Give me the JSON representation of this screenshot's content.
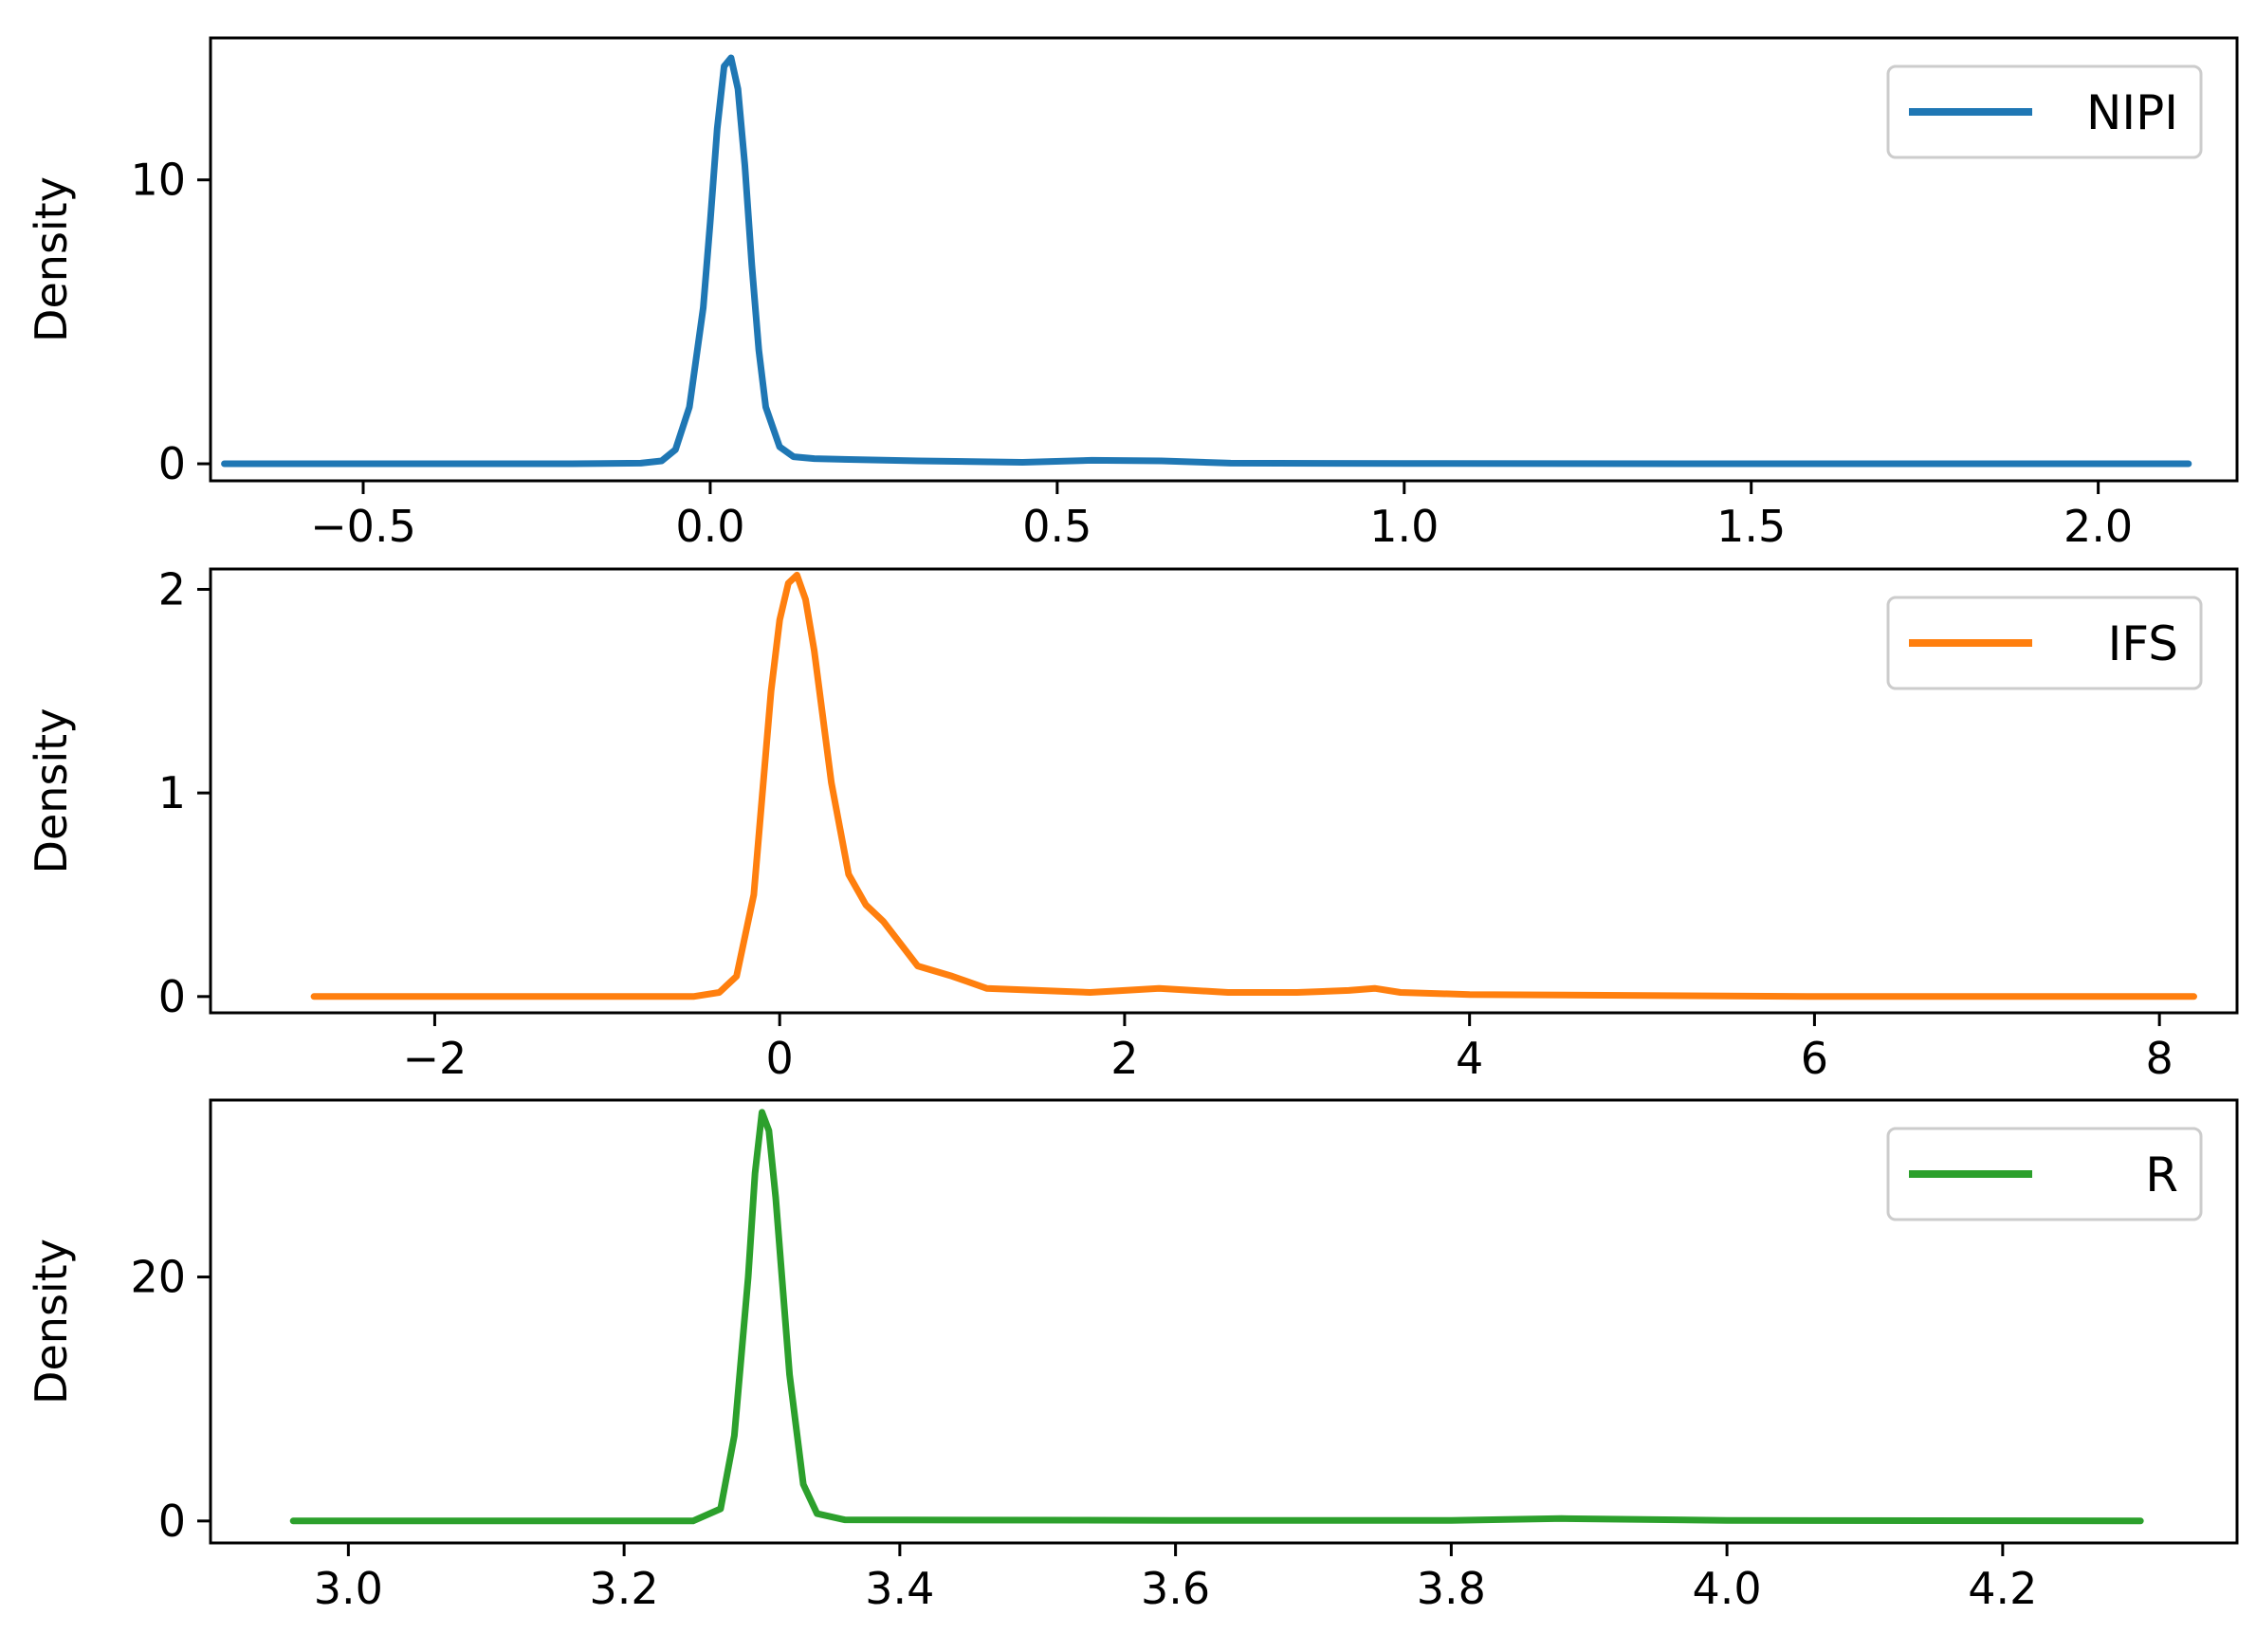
{
  "chart_data": [
    {
      "type": "line",
      "title": "",
      "xlabel": "",
      "ylabel": "Density",
      "xlim": [
        -0.72,
        2.2
      ],
      "ylim": [
        -0.6,
        15
      ],
      "xticks": [
        -0.5,
        0.0,
        0.5,
        1.0,
        1.5,
        2.0
      ],
      "xtick_labels": [
        "−0.5",
        "0.0",
        "0.5",
        "1.0",
        "1.5",
        "2.0"
      ],
      "yticks": [
        0,
        10
      ],
      "ytick_labels": [
        "0",
        "10"
      ],
      "grid": false,
      "legend_position": "top-right",
      "series": [
        {
          "name": "NIPI",
          "color": "#1f77b4",
          "x": [
            -0.7,
            -0.2,
            -0.1,
            -0.07,
            -0.05,
            -0.03,
            -0.01,
            0.0,
            0.01,
            0.02,
            0.03,
            0.04,
            0.05,
            0.06,
            0.07,
            0.08,
            0.1,
            0.12,
            0.15,
            0.2,
            0.3,
            0.45,
            0.55,
            0.65,
            0.75,
            1.0,
            1.5,
            2.13
          ],
          "y": [
            0,
            0,
            0.02,
            0.1,
            0.5,
            2.0,
            5.5,
            8.5,
            11.8,
            14.0,
            14.3,
            13.2,
            10.5,
            7.0,
            4.0,
            2.0,
            0.6,
            0.25,
            0.18,
            0.15,
            0.1,
            0.05,
            0.12,
            0.1,
            0.02,
            0.01,
            0,
            0
          ]
        }
      ]
    },
    {
      "type": "line",
      "title": "",
      "xlabel": "",
      "ylabel": "Density",
      "xlim": [
        -3.3,
        8.45
      ],
      "ylim": [
        -0.08,
        2.1
      ],
      "xticks": [
        -2,
        0,
        2,
        4,
        6,
        8
      ],
      "xtick_labels": [
        "−2",
        "0",
        "2",
        "4",
        "6",
        "8"
      ],
      "yticks": [
        0,
        1,
        2
      ],
      "ytick_labels": [
        "0",
        "1",
        "2"
      ],
      "grid": false,
      "legend_position": "top-right",
      "series": [
        {
          "name": "IFS",
          "color": "#ff7f0e",
          "x": [
            -2.7,
            -0.5,
            -0.35,
            -0.25,
            -0.15,
            -0.05,
            0.0,
            0.05,
            0.1,
            0.15,
            0.2,
            0.3,
            0.4,
            0.5,
            0.6,
            0.8,
            1.0,
            1.2,
            1.5,
            1.8,
            2.2,
            2.6,
            3.0,
            3.3,
            3.45,
            3.6,
            4.0,
            6.0,
            8.2
          ],
          "y": [
            0,
            0,
            0.02,
            0.1,
            0.5,
            1.5,
            1.85,
            2.03,
            2.07,
            1.95,
            1.7,
            1.05,
            0.6,
            0.45,
            0.37,
            0.15,
            0.1,
            0.04,
            0.03,
            0.02,
            0.04,
            0.02,
            0.02,
            0.03,
            0.04,
            0.02,
            0.01,
            0,
            0
          ]
        }
      ]
    },
    {
      "type": "line",
      "title": "",
      "xlabel": "",
      "ylabel": "Density",
      "xlim": [
        2.9,
        4.37
      ],
      "ylim": [
        -1.8,
        34.5
      ],
      "xticks": [
        3.0,
        3.2,
        3.4,
        3.6,
        3.8,
        4.0,
        4.2
      ],
      "xtick_labels": [
        "3.0",
        "3.2",
        "3.4",
        "3.6",
        "3.8",
        "4.0",
        "4.2"
      ],
      "yticks": [
        0,
        20
      ],
      "ytick_labels": [
        "0",
        "20"
      ],
      "grid": false,
      "legend_position": "top-right",
      "series": [
        {
          "name": "R",
          "color": "#2ca02c",
          "x": [
            2.96,
            3.25,
            3.27,
            3.28,
            3.29,
            3.295,
            3.3,
            3.305,
            3.31,
            3.32,
            3.33,
            3.34,
            3.36,
            3.6,
            3.8,
            3.88,
            4.0,
            4.3
          ],
          "y": [
            0,
            0,
            1.0,
            7.0,
            20.0,
            28.5,
            33.5,
            32.0,
            26.5,
            12.0,
            3.0,
            0.6,
            0.1,
            0.05,
            0.05,
            0.2,
            0.05,
            0
          ]
        }
      ]
    }
  ]
}
